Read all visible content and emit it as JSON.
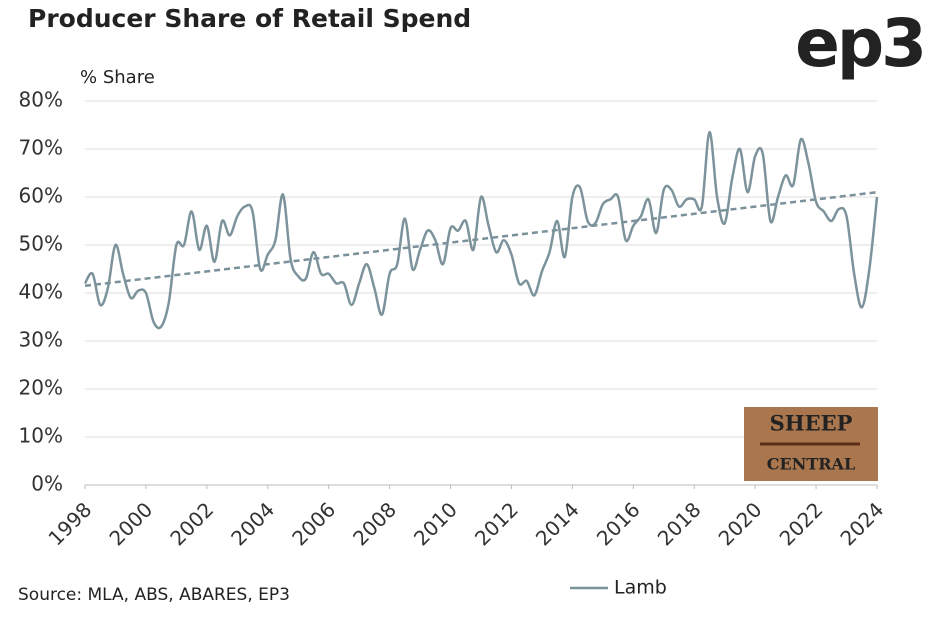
{
  "chart_data": {
    "type": "line",
    "title": "Producer Share of Retail Spend",
    "logo": "ep3",
    "badge": [
      "SHEEP",
      "CENTRAL"
    ],
    "y_label": "% Share",
    "source": "Source: MLA, ABS, ABARES, EP3",
    "x": [
      1998,
      1998.25,
      1998.5,
      1998.75,
      1999,
      1999.25,
      1999.5,
      1999.75,
      2000,
      2000.25,
      2000.5,
      2000.75,
      2001,
      2001.25,
      2001.5,
      2001.75,
      2002,
      2002.25,
      2002.5,
      2002.75,
      2003,
      2003.25,
      2003.5,
      2003.75,
      2004,
      2004.25,
      2004.5,
      2004.75,
      2005,
      2005.25,
      2005.5,
      2005.75,
      2006,
      2006.25,
      2006.5,
      2006.75,
      2007,
      2007.25,
      2007.5,
      2007.75,
      2008,
      2008.25,
      2008.5,
      2008.75,
      2009,
      2009.25,
      2009.5,
      2009.75,
      2010,
      2010.25,
      2010.5,
      2010.75,
      2011,
      2011.25,
      2011.5,
      2011.75,
      2012,
      2012.25,
      2012.5,
      2012.75,
      2013,
      2013.25,
      2013.5,
      2013.75,
      2014,
      2014.25,
      2014.5,
      2014.75,
      2015,
      2015.25,
      2015.5,
      2015.75,
      2016,
      2016.25,
      2016.5,
      2016.75,
      2017,
      2017.25,
      2017.5,
      2017.75,
      2018,
      2018.25,
      2018.5,
      2018.75,
      2019,
      2019.25,
      2019.5,
      2019.75,
      2020,
      2020.25,
      2020.5,
      2020.75,
      2021,
      2021.25,
      2021.5,
      2021.75,
      2022,
      2022.25,
      2022.5,
      2022.75,
      2023,
      2023.25,
      2023.5,
      2023.75,
      2024
    ],
    "series": [
      {
        "name": "Lamb",
        "color": "#7d939c",
        "values": [
          42,
          44,
          37.5,
          41,
          50,
          44,
          39,
          40.5,
          40,
          34,
          33,
          38,
          50,
          50,
          57,
          49,
          54,
          46.5,
          55,
          52,
          56,
          58,
          57,
          45,
          48,
          51,
          60.5,
          47,
          43.5,
          43,
          48.5,
          44,
          44,
          42,
          42,
          37.5,
          42,
          46,
          41,
          35.5,
          44,
          46,
          55.5,
          45,
          49,
          53,
          51,
          46,
          53.5,
          53,
          55,
          49,
          60,
          54,
          48.5,
          51,
          48,
          42,
          42.5,
          39.5,
          44.5,
          48.5,
          55,
          47.5,
          60,
          62,
          55,
          54.5,
          58.5,
          59.5,
          60,
          51,
          54,
          56,
          59.5,
          52.5,
          61.5,
          61.5,
          58,
          59.5,
          59.5,
          58,
          73.5,
          60,
          54.5,
          64,
          70,
          61,
          68.5,
          69,
          55,
          60,
          64.5,
          62.5,
          72,
          67,
          59,
          57,
          55,
          57.5,
          56,
          44,
          37,
          45,
          60
        ]
      }
    ],
    "trend": {
      "x": [
        1998,
        2024
      ],
      "values": [
        41.5,
        61
      ],
      "color": "#7a909a"
    },
    "xlim": [
      1998,
      2024
    ],
    "xticks": [
      1998,
      2000,
      2002,
      2004,
      2006,
      2008,
      2010,
      2012,
      2014,
      2016,
      2018,
      2020,
      2022,
      2024
    ],
    "ylim": [
      0,
      80
    ],
    "yticks": [
      {
        "value": 0,
        "label": "0%"
      },
      {
        "value": 10,
        "label": "10%"
      },
      {
        "value": 20,
        "label": "20%"
      },
      {
        "value": 30,
        "label": "30%"
      },
      {
        "value": 40,
        "label": "40%"
      },
      {
        "value": 50,
        "label": "50%"
      },
      {
        "value": 60,
        "label": "60%"
      },
      {
        "value": 70,
        "label": "70%"
      },
      {
        "value": 80,
        "label": "80%"
      }
    ],
    "grid": true
  }
}
